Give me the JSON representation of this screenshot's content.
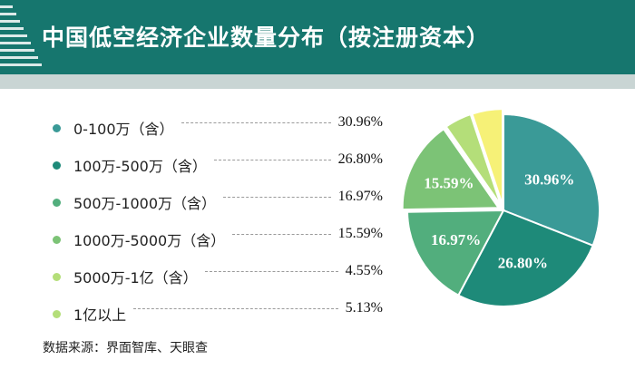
{
  "header": {
    "title": "中国低空经济企业数量分布（按注册资本）"
  },
  "colors": {
    "header_bg": "#16766e",
    "header_strip": "#c9d5d4"
  },
  "chart_data": {
    "type": "pie",
    "title": "中国低空经济企业数量分布（按注册资本）",
    "unit": "%",
    "legend_position": "left",
    "slices": [
      {
        "label": "0-100万（含）",
        "value": 30.96,
        "value_text": "30.96%",
        "color": "#3a9a97",
        "exploded": false
      },
      {
        "label": "100万-500万（含）",
        "value": 26.8,
        "value_text": "26.80%",
        "color": "#1e8a79",
        "exploded": false
      },
      {
        "label": "500万-1000万（含）",
        "value": 16.97,
        "value_text": "16.97%",
        "color": "#52ae7d",
        "exploded": false
      },
      {
        "label": "1000万-5000万（含）",
        "value": 15.59,
        "value_text": "15.59%",
        "color": "#7cc376",
        "exploded": true
      },
      {
        "label": "5000万-1亿（含）",
        "value": 4.55,
        "value_text": "4.55%",
        "color": "#b4de79",
        "exploded": true
      },
      {
        "label": "1亿以上",
        "value": 5.13,
        "value_text": "5.13%",
        "color": "#f6f177",
        "exploded": true
      }
    ]
  },
  "source": {
    "text": "数据来源：界面智库、天眼查"
  }
}
